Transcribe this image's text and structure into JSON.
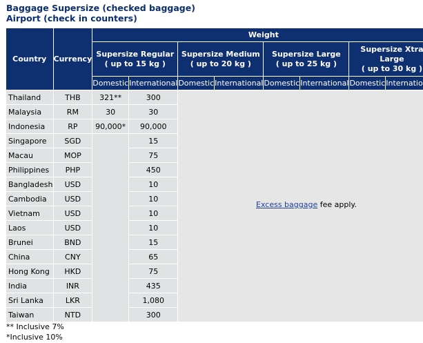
{
  "title_line1": "Baggage Supersize (checked baggage)",
  "title_line2": "Airport (check in counters)",
  "headers": {
    "country": "Country",
    "currency": "Currency",
    "weight": "Weight",
    "groups": [
      {
        "name": "Supersize Regular",
        "range": "( up to 15 kg )"
      },
      {
        "name": "Supersize Medium",
        "range": "( up to 20 kg )"
      },
      {
        "name": "Supersize Large",
        "range": "( up to 25 kg )"
      },
      {
        "name": "Supersize Xtra Large",
        "range": "( up to 30 kg )"
      }
    ],
    "domestic": "Domestic",
    "international": "International"
  },
  "rows": [
    {
      "country": "Thailand",
      "currency": "THB",
      "domestic": "321**",
      "international": "300"
    },
    {
      "country": "Malaysia",
      "currency": "RM",
      "domestic": "30",
      "international": "30"
    },
    {
      "country": "Indonesia",
      "currency": "RP",
      "domestic": "90,000*",
      "international": "90,000"
    },
    {
      "country": "Singapore",
      "currency": "SGD",
      "domestic": "",
      "international": "15"
    },
    {
      "country": "Macau",
      "currency": "MOP",
      "domestic": "",
      "international": "75"
    },
    {
      "country": "Philippines",
      "currency": "PHP",
      "domestic": "",
      "international": "450"
    },
    {
      "country": "Bangladesh",
      "currency": "USD",
      "domestic": "",
      "international": "10"
    },
    {
      "country": "Cambodia",
      "currency": "USD",
      "domestic": "",
      "international": "10"
    },
    {
      "country": "Vietnam",
      "currency": "USD",
      "domestic": "",
      "international": "10"
    },
    {
      "country": "Laos",
      "currency": "USD",
      "domestic": "",
      "international": "10"
    },
    {
      "country": "Brunei",
      "currency": "BND",
      "domestic": "",
      "international": "15"
    },
    {
      "country": "China",
      "currency": "CNY",
      "domestic": "",
      "international": "65"
    },
    {
      "country": "Hong Kong",
      "currency": "HKD",
      "domestic": "",
      "international": "75"
    },
    {
      "country": "India",
      "currency": "INR",
      "domestic": "",
      "international": "435"
    },
    {
      "country": "Sri Lanka",
      "currency": "LKR",
      "domestic": "",
      "international": "1,080"
    },
    {
      "country": "Taiwan",
      "currency": "NTD",
      "domestic": "",
      "international": "300"
    }
  ],
  "note_link": "Excess baggage",
  "note_text": " fee apply.",
  "footnotes": [
    "** Inclusive 7%",
    "*Inclusive 10%"
  ]
}
